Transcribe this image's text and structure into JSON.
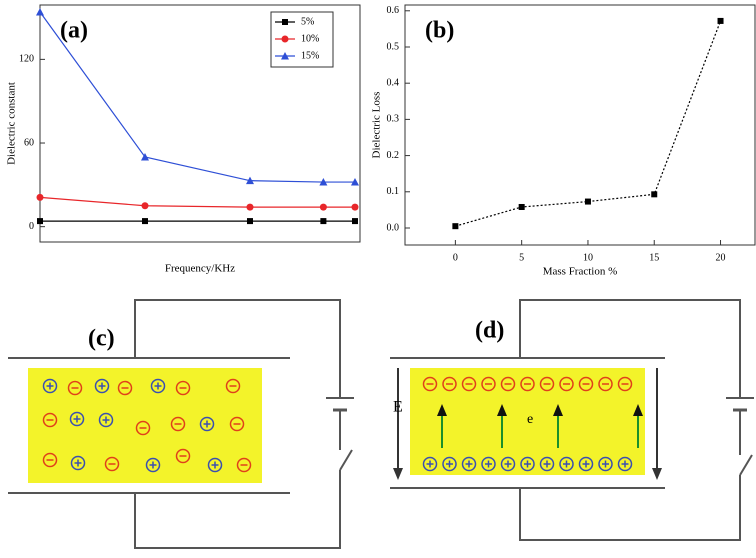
{
  "chart_data": [
    {
      "type": "line",
      "title": "(a)",
      "x_label": "Frequency/KHz",
      "y_label": "Dielectric constant",
      "log_x": true,
      "x": [
        1,
        10,
        100,
        500,
        1000
      ],
      "xlim": [
        1,
        1116
      ],
      "ylim": [
        -11,
        159
      ],
      "yticks": [
        0,
        60,
        120
      ],
      "legend": "upper right",
      "series": [
        {
          "name": "5%",
          "color": "#000000",
          "marker": "square",
          "values": [
            4,
            4,
            4,
            4,
            4
          ]
        },
        {
          "name": "10%",
          "color": "#e8262a",
          "marker": "circle",
          "values": [
            21,
            15,
            14,
            14,
            14
          ]
        },
        {
          "name": "15%",
          "color": "#2e4fd6",
          "marker": "triangle",
          "values": [
            154,
            50,
            33,
            32,
            32
          ]
        }
      ]
    },
    {
      "type": "line",
      "title": "(b)",
      "x_label": "Mass Fraction %",
      "y_label": "Dielectric Loss",
      "line_style": "dotted",
      "x": [
        0,
        5,
        10,
        15,
        20
      ],
      "xlim": [
        -3.8,
        22.6
      ],
      "xticks": [
        0,
        5,
        10,
        15,
        20
      ],
      "ylim": [
        -0.047,
        0.616
      ],
      "yticks": [
        {
          "value": 0,
          "label": "0.0"
        },
        0.1,
        0.2,
        0.3,
        0.4,
        0.5,
        0.6
      ],
      "series": [
        {
          "color": "#000000",
          "marker": "square",
          "values": [
            0.005,
            0.058,
            0.073,
            0.093,
            0.572
          ]
        }
      ]
    }
  ],
  "diagrams": {
    "c": {
      "label": "(c)"
    },
    "d": {
      "label": "(d)",
      "field_label": "E",
      "charge_label": "e"
    }
  }
}
